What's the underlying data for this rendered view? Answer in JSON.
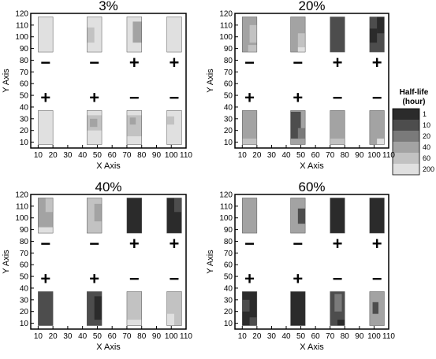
{
  "legend": {
    "title_lines": [
      "Half-life",
      "(hour)"
    ],
    "levels": [
      {
        "label": "1",
        "color": "#2b2b2b"
      },
      {
        "label": "10",
        "color": "#4d4d4d"
      },
      {
        "label": "20",
        "color": "#7a7a7a"
      },
      {
        "label": "40",
        "color": "#a3a3a3"
      },
      {
        "label": "60",
        "color": "#c2c2c2"
      },
      {
        "label": "200",
        "color": "#e0e0e0"
      }
    ]
  },
  "chart_data": [
    {
      "type": "heatmap",
      "title": "3%",
      "xlabel": "X Axis",
      "ylabel": "Y Axis",
      "xlim": [
        5,
        110
      ],
      "ylim": [
        5,
        120
      ],
      "xticks": [
        10,
        20,
        30,
        40,
        50,
        60,
        70,
        80,
        90,
        100,
        110
      ],
      "yticks": [
        10,
        20,
        30,
        40,
        50,
        60,
        70,
        80,
        90,
        100,
        110,
        120
      ],
      "columns": [
        {
          "x": [
            10,
            20
          ],
          "top_sign": "−",
          "top_level": "200",
          "top_patches": [],
          "bottom_sign": "+",
          "bottom_level": "200",
          "bottom_patches": []
        },
        {
          "x": [
            43,
            53
          ],
          "top_sign": "−",
          "top_level": "200",
          "top_patches": [
            {
              "x": [
                43,
                48
              ],
              "y": [
                95,
                108
              ],
              "level": "60"
            }
          ],
          "bottom_sign": "+",
          "bottom_level": "200",
          "bottom_patches": [
            {
              "x": [
                43,
                53
              ],
              "y": [
                20,
                33
              ],
              "level": "60"
            },
            {
              "x": [
                45,
                50
              ],
              "y": [
                23,
                30
              ],
              "level": "40"
            }
          ]
        },
        {
          "x": [
            70,
            80
          ],
          "top_sign": "+",
          "top_level": "200",
          "top_patches": [
            {
              "x": [
                74,
                80
              ],
              "y": [
                95,
                113
              ],
              "level": "40"
            }
          ],
          "bottom_sign": "−",
          "bottom_level": "200",
          "bottom_patches": [
            {
              "x": [
                70,
                80
              ],
              "y": [
                15,
                33
              ],
              "level": "60"
            },
            {
              "x": [
                72,
                76
              ],
              "y": [
                25,
                31
              ],
              "level": "40"
            }
          ]
        },
        {
          "x": [
            97,
            107
          ],
          "top_sign": "+",
          "top_level": "200",
          "top_patches": [],
          "bottom_sign": "−",
          "bottom_level": "200",
          "bottom_patches": [
            {
              "x": [
                97,
                102
              ],
              "y": [
                25,
                32
              ],
              "level": "60"
            }
          ]
        }
      ]
    },
    {
      "type": "heatmap",
      "title": "20%",
      "xlabel": "X Axis",
      "ylabel": "Y Axis",
      "xlim": [
        5,
        110
      ],
      "ylim": [
        5,
        120
      ],
      "xticks": [
        10,
        20,
        30,
        40,
        50,
        60,
        70,
        80,
        90,
        100,
        110
      ],
      "yticks": [
        10,
        20,
        30,
        40,
        50,
        60,
        70,
        80,
        90,
        100,
        110,
        120
      ],
      "columns": [
        {
          "x": [
            10,
            20
          ],
          "top_sign": "−",
          "top_level": "40",
          "top_patches": [
            {
              "x": [
                15,
                20
              ],
              "y": [
                95,
                110
              ],
              "level": "60"
            },
            {
              "x": [
                14,
                20
              ],
              "y": [
                87,
                93
              ],
              "level": "60"
            }
          ],
          "bottom_sign": "+",
          "bottom_level": "40",
          "bottom_patches": [
            {
              "x": [
                10,
                20
              ],
              "y": [
                8,
                13
              ],
              "level": "60"
            }
          ]
        },
        {
          "x": [
            43,
            53
          ],
          "top_sign": "−",
          "top_level": "40",
          "top_patches": [
            {
              "x": [
                48,
                53
              ],
              "y": [
                88,
                103
              ],
              "level": "60"
            },
            {
              "x": [
                48,
                53
              ],
              "y": [
                87,
                91
              ],
              "level": "200"
            }
          ],
          "bottom_sign": "+",
          "bottom_level": "40",
          "bottom_patches": [
            {
              "x": [
                43,
                50
              ],
              "y": [
                13,
                36
              ],
              "level": "10"
            },
            {
              "x": [
                48,
                53
              ],
              "y": [
                13,
                22
              ],
              "level": "20"
            }
          ]
        },
        {
          "x": [
            70,
            80
          ],
          "top_sign": "+",
          "top_level": "10",
          "top_patches": [],
          "bottom_sign": "−",
          "bottom_level": "40",
          "bottom_patches": [
            {
              "x": [
                70,
                80
              ],
              "y": [
                8,
                13
              ],
              "level": "60"
            }
          ]
        },
        {
          "x": [
            97,
            107
          ],
          "top_sign": "+",
          "top_level": "10",
          "top_patches": [
            {
              "x": [
                97,
                102
              ],
              "y": [
                95,
                107
              ],
              "level": "1"
            },
            {
              "x": [
                102,
                107
              ],
              "y": [
                103,
                117
              ],
              "level": "1"
            }
          ],
          "bottom_sign": "−",
          "bottom_level": "40",
          "bottom_patches": [
            {
              "x": [
                102,
                107
              ],
              "y": [
                8,
                13
              ],
              "level": "200"
            }
          ]
        }
      ]
    },
    {
      "type": "heatmap",
      "title": "40%",
      "xlabel": "X Axis",
      "ylabel": "Y Axis",
      "xlim": [
        5,
        110
      ],
      "ylim": [
        5,
        120
      ],
      "xticks": [
        10,
        20,
        30,
        40,
        50,
        60,
        70,
        80,
        90,
        100,
        110
      ],
      "yticks": [
        10,
        20,
        30,
        40,
        50,
        60,
        70,
        80,
        90,
        100,
        110,
        120
      ],
      "columns": [
        {
          "x": [
            10,
            20
          ],
          "top_sign": "−",
          "top_level": "40",
          "top_patches": [
            {
              "x": [
                15,
                20
              ],
              "y": [
                105,
                117
              ],
              "level": "60"
            },
            {
              "x": [
                10,
                20
              ],
              "y": [
                87,
                92
              ],
              "level": "200"
            }
          ],
          "bottom_sign": "+",
          "bottom_level": "10",
          "bottom_patches": []
        },
        {
          "x": [
            43,
            53
          ],
          "top_sign": "−",
          "top_level": "60",
          "top_patches": [
            {
              "x": [
                48,
                53
              ],
              "y": [
                97,
                112
              ],
              "level": "40"
            }
          ],
          "bottom_sign": "+",
          "bottom_level": "10",
          "bottom_patches": [
            {
              "x": [
                48,
                53
              ],
              "y": [
                13,
                33
              ],
              "level": "1"
            }
          ]
        },
        {
          "x": [
            70,
            80
          ],
          "top_sign": "+",
          "top_level": "1",
          "top_patches": [],
          "bottom_sign": "−",
          "bottom_level": "60",
          "bottom_patches": [
            {
              "x": [
                70,
                80
              ],
              "y": [
                8,
                13
              ],
              "level": "200"
            }
          ]
        },
        {
          "x": [
            97,
            107
          ],
          "top_sign": "+",
          "top_level": "1",
          "top_patches": [
            {
              "x": [
                102,
                107
              ],
              "y": [
                105,
                117
              ],
              "level": "10"
            }
          ],
          "bottom_sign": "−",
          "bottom_level": "60",
          "bottom_patches": [
            {
              "x": [
                97,
                102
              ],
              "y": [
                8,
                18
              ],
              "level": "200"
            }
          ]
        }
      ]
    },
    {
      "type": "heatmap",
      "title": "60%",
      "xlabel": "X Axis",
      "ylabel": "Y Axis",
      "xlim": [
        5,
        110
      ],
      "ylim": [
        5,
        120
      ],
      "xticks": [
        10,
        20,
        30,
        40,
        50,
        60,
        70,
        80,
        90,
        100,
        110
      ],
      "yticks": [
        10,
        20,
        30,
        40,
        50,
        60,
        70,
        80,
        90,
        100,
        110,
        120
      ],
      "columns": [
        {
          "x": [
            10,
            20
          ],
          "top_sign": "−",
          "top_level": "40",
          "top_patches": [],
          "bottom_sign": "+",
          "bottom_level": "1",
          "bottom_patches": [
            {
              "x": [
                10,
                15
              ],
              "y": [
                20,
                30
              ],
              "level": "10"
            },
            {
              "x": [
                15,
                20
              ],
              "y": [
                8,
                15
              ],
              "level": "10"
            }
          ]
        },
        {
          "x": [
            43,
            53
          ],
          "top_sign": "−",
          "top_level": "40",
          "top_patches": [
            {
              "x": [
                48,
                53
              ],
              "y": [
                95,
                108
              ],
              "level": "10"
            }
          ],
          "bottom_sign": "+",
          "bottom_level": "1",
          "bottom_patches": []
        },
        {
          "x": [
            70,
            80
          ],
          "top_sign": "+",
          "top_level": "1",
          "top_patches": [],
          "bottom_sign": "−",
          "bottom_level": "10",
          "bottom_patches": [
            {
              "x": [
                73,
                78
              ],
              "y": [
                20,
                35
              ],
              "level": "20"
            },
            {
              "x": [
                75,
                80
              ],
              "y": [
                8,
                13
              ],
              "level": "1"
            }
          ]
        },
        {
          "x": [
            97,
            107
          ],
          "top_sign": "+",
          "top_level": "1",
          "top_patches": [],
          "bottom_sign": "−",
          "bottom_level": "40",
          "bottom_patches": [
            {
              "x": [
                99,
                103
              ],
              "y": [
                18,
                28
              ],
              "level": "10"
            }
          ]
        }
      ]
    }
  ]
}
